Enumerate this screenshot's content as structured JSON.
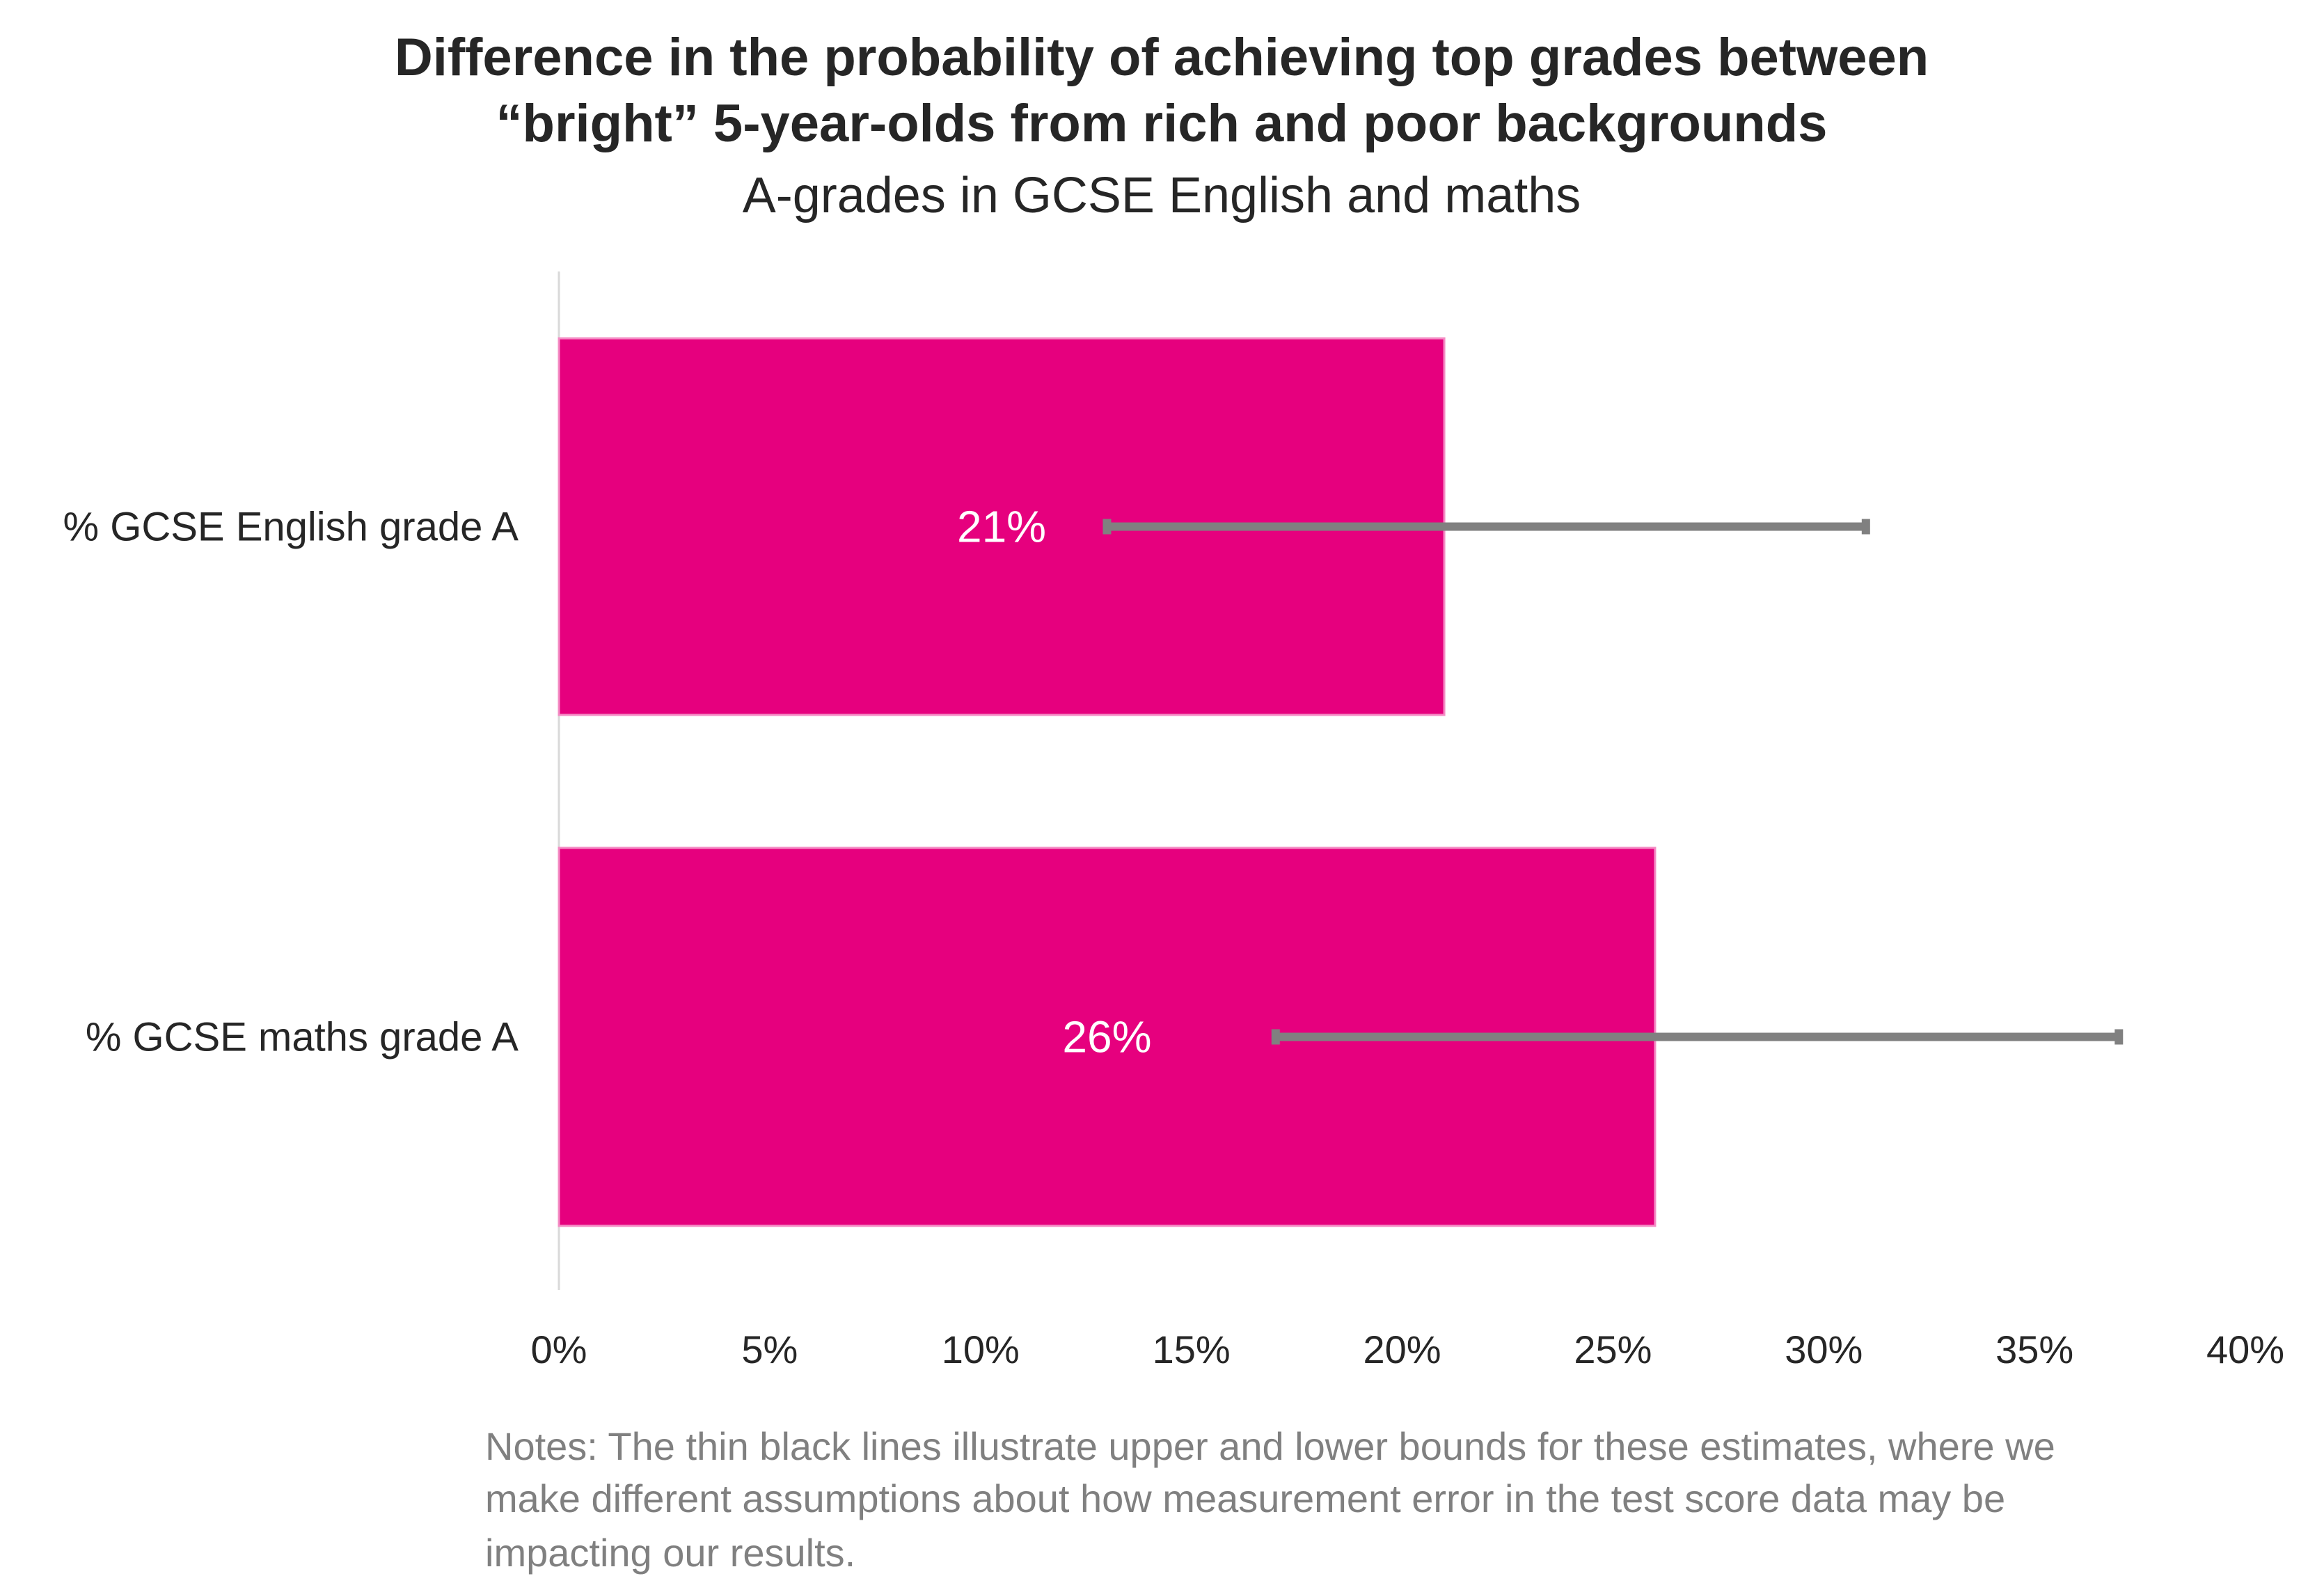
{
  "chart_data": {
    "type": "bar",
    "orientation": "horizontal",
    "title": [
      "Difference in the probability of achieving top grades between",
      "“bright” 5-year-olds from rich and poor backgrounds"
    ],
    "subtitle": "A-grades in GCSE English and maths",
    "categories": [
      "% GCSE English grade A",
      "% GCSE maths grade A"
    ],
    "values": [
      21,
      26
    ],
    "data_labels": [
      "21%",
      "26%"
    ],
    "error_bounds": [
      {
        "lower": 13,
        "upper": 31
      },
      {
        "lower": 17,
        "upper": 37
      }
    ],
    "xlim": [
      0,
      40
    ],
    "x_ticks": [
      0,
      5,
      10,
      15,
      20,
      25,
      30,
      35,
      40
    ],
    "x_tick_labels": [
      "0%",
      "5%",
      "10%",
      "15%",
      "20%",
      "25%",
      "30%",
      "35%",
      "40%"
    ],
    "xlabel": "",
    "ylabel": "",
    "grid": false,
    "legend": "none",
    "colors": {
      "bar": "#E6007E",
      "error_bar": "#808080",
      "axis": "#D9D9D9"
    },
    "notes": [
      "Notes: The thin black lines illustrate upper and lower bounds for these estimates, where we",
      "make different assumptions about how measurement error in the test score data may be",
      "impacting our results."
    ]
  }
}
